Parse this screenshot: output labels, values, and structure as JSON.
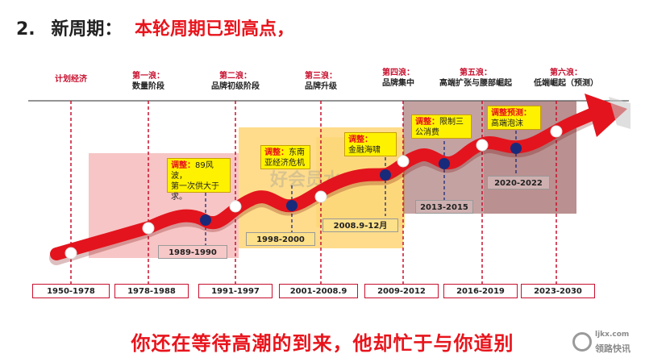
{
  "header": {
    "number": "2.",
    "title": "新周期：",
    "subtitle": "本轮周期已到高点，"
  },
  "waves": [
    {
      "name": "",
      "desc": "计划经济"
    },
    {
      "name": "第一浪：",
      "desc": "数量阶段"
    },
    {
      "name": "第二浪：",
      "desc": "品牌初级阶段"
    },
    {
      "name": "第三浪：",
      "desc": "品牌升级"
    },
    {
      "name": "第四浪：",
      "desc": "品牌集中"
    },
    {
      "name": "第五浪：",
      "desc": "高端扩张与腰部崛起"
    },
    {
      "name": "第六浪：",
      "desc": "低端崛起（预测）"
    }
  ],
  "year_ranges": [
    "1950-1978",
    "1978-1988",
    "1991-1997",
    "2001-2008.9",
    "2009-2012",
    "2016-2019",
    "2023-2030"
  ],
  "adjustments": [
    {
      "label": "调整：",
      "text": "89风波，第一次供大于求。",
      "text_lines": [
        "89风波，",
        "第一次供大于",
        "求。"
      ],
      "period": "1989-1990"
    },
    {
      "label": "调整：",
      "text": "东南亚经济危机",
      "text_lines": [
        "东南",
        "亚经济危机"
      ],
      "period": "1998-2000"
    },
    {
      "label": "调整：",
      "text": "金融海啸",
      "text_lines": [
        "金融海啸"
      ],
      "period": "2008.9-12月"
    },
    {
      "label": "调整：",
      "text": "限制三公消费",
      "text_lines": [
        "限制三",
        "公消费"
      ],
      "period": "2013-2015"
    },
    {
      "label": "调整预测：",
      "text": "高端泡沫",
      "text_lines": [
        "高端泡沫"
      ],
      "period": "2020-2022"
    }
  ],
  "watermark": "好会员水",
  "footer": "你还在等待高潮的到来，他却忙于与你道别",
  "logo": {
    "top": "ljkx.com",
    "bottom": "领路快讯"
  },
  "colors": {
    "accent": "#e8141c",
    "arrow": "#e3141d",
    "node_blue": "#1a2a7a",
    "pink_region": "#f4b6b6",
    "yellow_region": "#fdd36a",
    "dark_region": "#a06a6a"
  }
}
